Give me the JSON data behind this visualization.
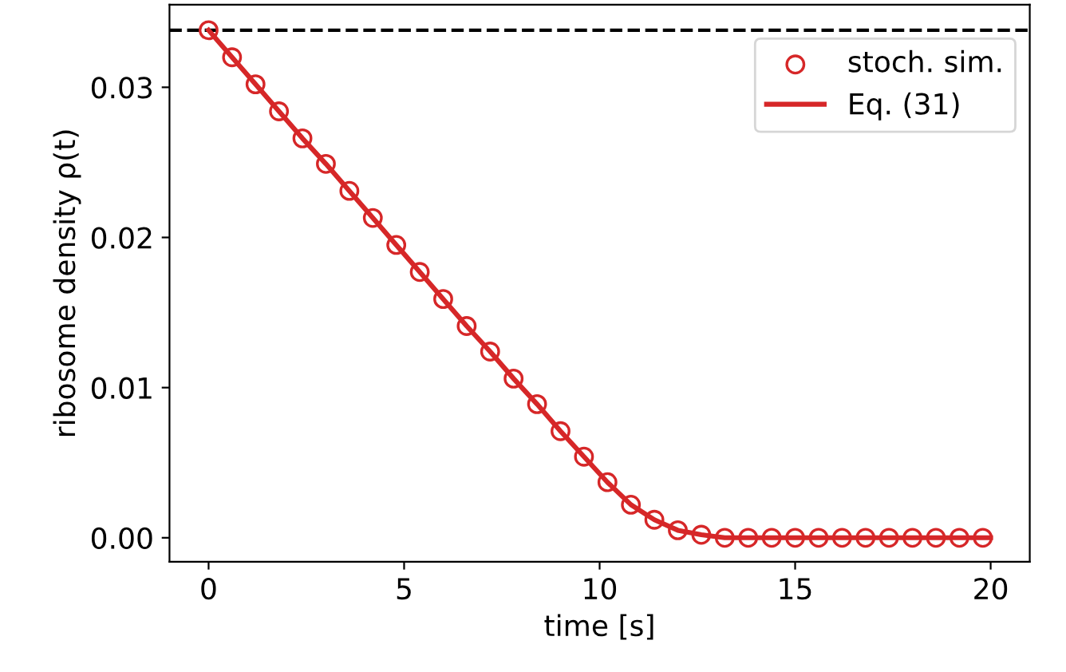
{
  "chart_data": {
    "type": "scatter",
    "xlabel": "time [s]",
    "ylabel": "ribosome density ρ(t)",
    "series": [
      {
        "name": "stoch. sim.",
        "marker": "circle",
        "color": "#d62728",
        "x": [
          0,
          0.6,
          1.2,
          1.8,
          2.4,
          3.0,
          3.6,
          4.2,
          4.8,
          5.4,
          6.0,
          6.6,
          7.2,
          7.8,
          8.4,
          9.0,
          9.6,
          10.2,
          10.8,
          11.4,
          12.0,
          12.6,
          13.2,
          13.8,
          14.4,
          15.0,
          15.6,
          16.2,
          16.8,
          17.4,
          18.0,
          18.6,
          19.2,
          19.8
        ],
        "values": [
          0.0338,
          0.032,
          0.0302,
          0.0284,
          0.0266,
          0.0249,
          0.0231,
          0.0213,
          0.0195,
          0.0177,
          0.0159,
          0.0141,
          0.0124,
          0.0106,
          0.0089,
          0.0071,
          0.0054,
          0.0037,
          0.0022,
          0.0012,
          0.0005,
          0.0002,
          0,
          0,
          0,
          0,
          0,
          0,
          0,
          0,
          0,
          0,
          0,
          0
        ]
      },
      {
        "name": "Eq. (31)",
        "type": "line",
        "marker": "none",
        "line_style": "solid",
        "color": "#d62728",
        "x": [
          0,
          0.6,
          1.2,
          1.8,
          2.4,
          3.0,
          3.6,
          4.2,
          4.8,
          5.4,
          6.0,
          6.6,
          7.2,
          7.8,
          8.4,
          9.0,
          9.6,
          10.2,
          10.8,
          11.4,
          12.0,
          12.6,
          13.2,
          13.8,
          14.4,
          15.0,
          15.6,
          16.2,
          16.8,
          17.4,
          18.0,
          18.6,
          19.2,
          19.8,
          20
        ],
        "values": [
          0.0338,
          0.032,
          0.0302,
          0.0284,
          0.0266,
          0.0249,
          0.0231,
          0.0213,
          0.0195,
          0.0177,
          0.0159,
          0.0141,
          0.0124,
          0.0106,
          0.0089,
          0.0071,
          0.0054,
          0.0037,
          0.0022,
          0.0012,
          0.0005,
          0.0002,
          0,
          0,
          0,
          0,
          0,
          0,
          0,
          0,
          0,
          0,
          0,
          0,
          0
        ]
      }
    ],
    "ref_lines": [
      {
        "axis": "y",
        "value": 0.0338,
        "label": null,
        "color": "#000000",
        "line_style": "dashed"
      }
    ],
    "xlim": [
      -1,
      21
    ],
    "ylim": [
      -0.0016,
      0.0355
    ],
    "xticks": [
      0,
      5,
      10,
      15,
      20
    ],
    "yticks": [
      {
        "value": 0,
        "label": "0.00"
      },
      {
        "value": 0.01,
        "label": "0.01"
      },
      {
        "value": 0.02,
        "label": "0.02"
      },
      {
        "value": 0.03,
        "label": "0.03"
      }
    ],
    "grid": false,
    "legend": "top right"
  }
}
